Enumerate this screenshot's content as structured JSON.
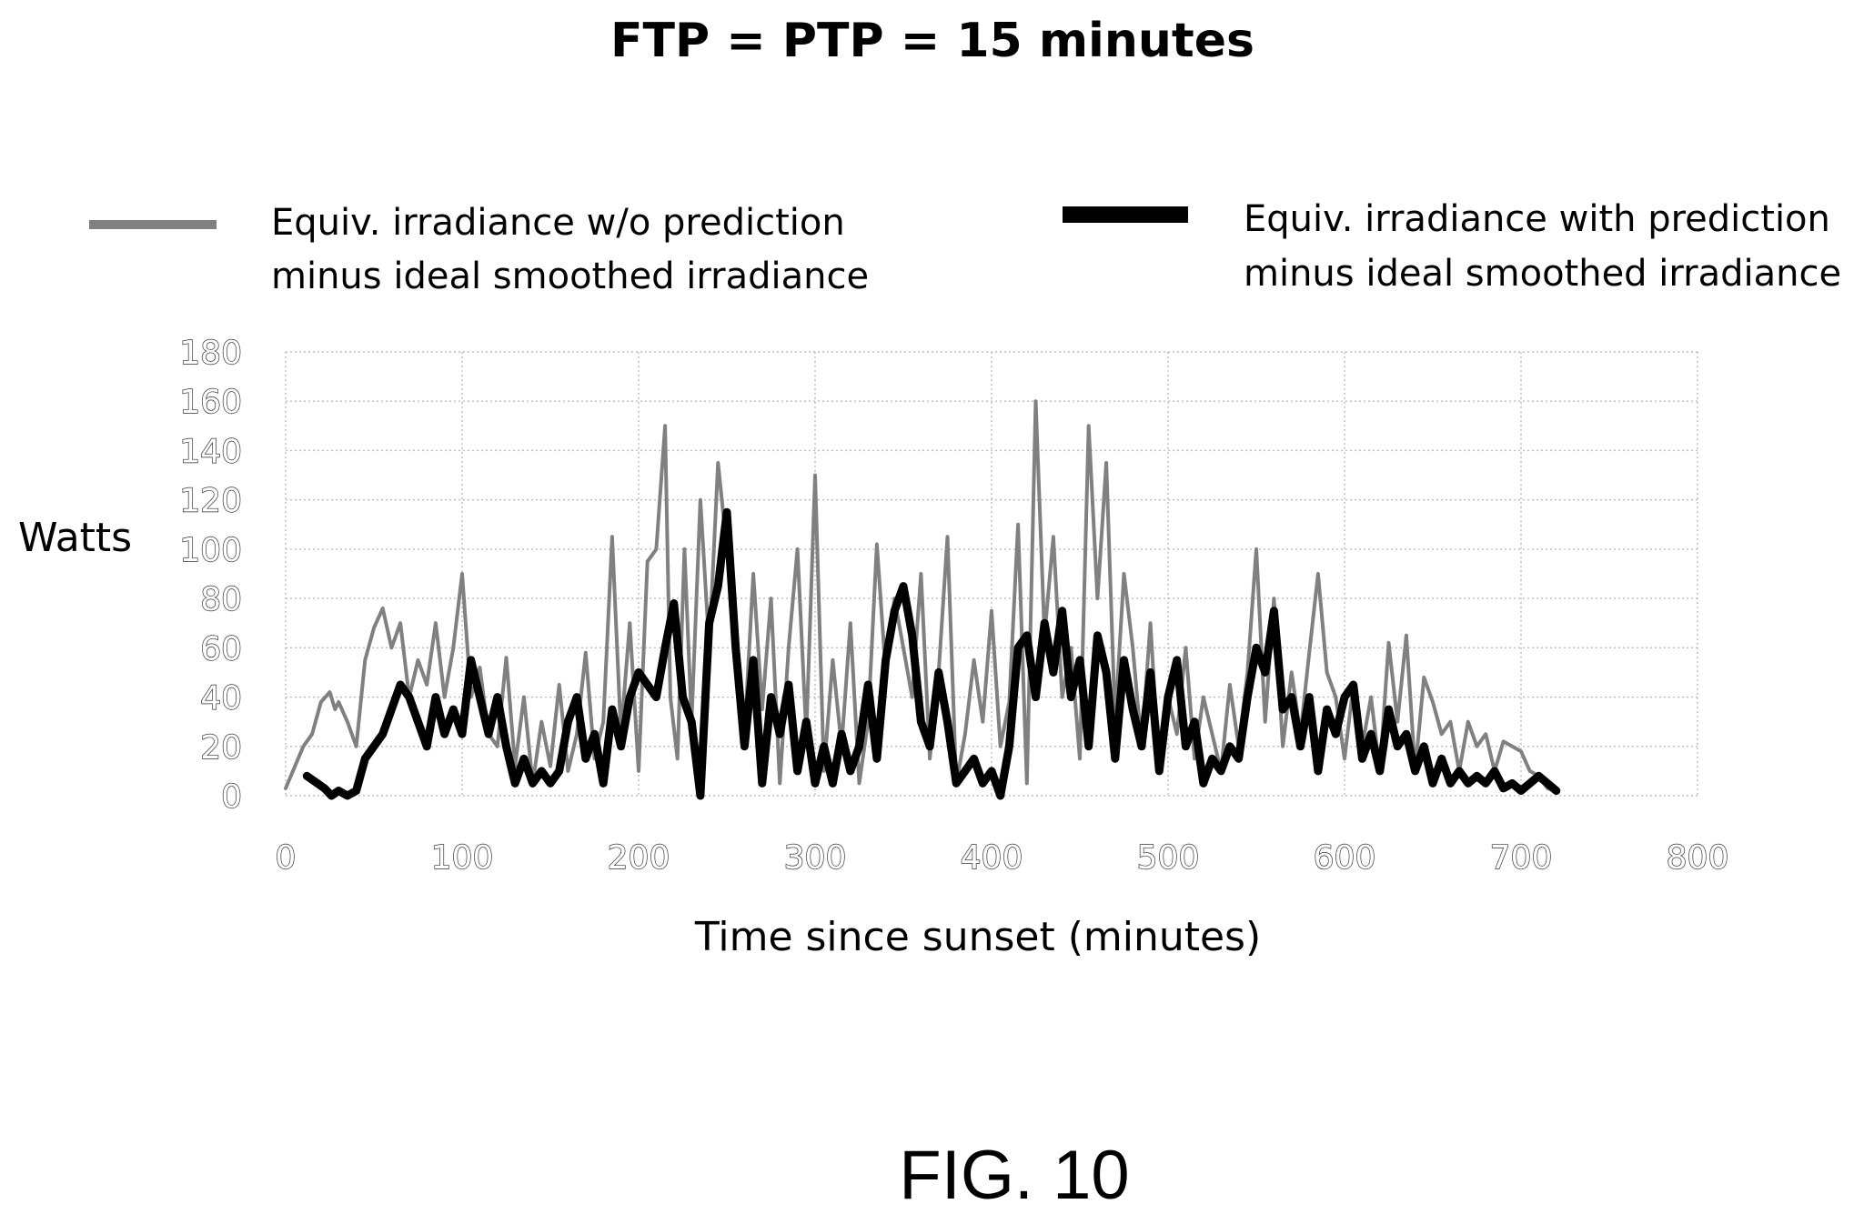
{
  "chart_data": {
    "type": "line",
    "title": "FTP = PTP = 15 minutes",
    "xlabel": "Time since sunset (minutes)",
    "ylabel": "Watts",
    "figure_label": "FIG. 10",
    "xlim": [
      0,
      800
    ],
    "ylim": [
      0,
      180
    ],
    "x_ticks": [
      0,
      100,
      200,
      300,
      400,
      500,
      600,
      700,
      800
    ],
    "y_ticks": [
      0,
      20,
      40,
      60,
      80,
      100,
      120,
      140,
      160,
      180
    ],
    "grid": true,
    "legend_position": "top",
    "series": [
      {
        "name_lines": [
          "Equiv. irradiance w/o prediction",
          "minus ideal smoothed irradiance"
        ],
        "color": "#808080",
        "style": "thin",
        "x": [
          0,
          10,
          15,
          20,
          25,
          28,
          30,
          35,
          40,
          45,
          50,
          55,
          60,
          65,
          70,
          75,
          80,
          85,
          90,
          95,
          100,
          105,
          110,
          115,
          120,
          125,
          130,
          135,
          140,
          145,
          150,
          155,
          160,
          165,
          170,
          175,
          180,
          185,
          190,
          195,
          200,
          205,
          210,
          215,
          218,
          222,
          226,
          230,
          235,
          240,
          245,
          250,
          255,
          260,
          265,
          270,
          275,
          280,
          285,
          290,
          295,
          300,
          305,
          310,
          315,
          320,
          325,
          330,
          335,
          340,
          345,
          350,
          355,
          360,
          365,
          370,
          375,
          380,
          385,
          390,
          395,
          400,
          405,
          410,
          415,
          420,
          425,
          430,
          435,
          440,
          445,
          450,
          455,
          460,
          465,
          470,
          475,
          480,
          485,
          490,
          495,
          500,
          505,
          510,
          515,
          520,
          525,
          530,
          535,
          540,
          545,
          550,
          555,
          560,
          565,
          570,
          575,
          580,
          585,
          590,
          595,
          600,
          605,
          610,
          615,
          620,
          625,
          630,
          635,
          640,
          645,
          650,
          655,
          660,
          665,
          670,
          675,
          680,
          685,
          690,
          695,
          700,
          705,
          710,
          715,
          720
        ],
        "values": [
          3,
          20,
          25,
          38,
          42,
          35,
          38,
          30,
          20,
          55,
          68,
          76,
          60,
          70,
          40,
          55,
          45,
          70,
          40,
          60,
          90,
          40,
          52,
          25,
          20,
          56,
          12,
          40,
          5,
          30,
          12,
          45,
          10,
          25,
          58,
          15,
          30,
          105,
          25,
          70,
          10,
          95,
          100,
          150,
          40,
          15,
          100,
          30,
          120,
          60,
          135,
          100,
          65,
          25,
          90,
          35,
          80,
          5,
          60,
          100,
          25,
          130,
          10,
          55,
          20,
          70,
          5,
          30,
          102,
          50,
          80,
          60,
          40,
          90,
          15,
          50,
          105,
          5,
          25,
          55,
          30,
          75,
          20,
          38,
          110,
          5,
          160,
          65,
          105,
          40,
          60,
          15,
          150,
          80,
          135,
          30,
          90,
          60,
          20,
          70,
          10,
          40,
          25,
          60,
          15,
          40,
          25,
          10,
          45,
          20,
          50,
          100,
          30,
          80,
          20,
          50,
          25,
          58,
          90,
          50,
          40,
          15,
          45,
          20,
          40,
          10,
          62,
          30,
          65,
          10,
          48,
          38,
          25,
          30,
          10,
          30,
          20,
          25,
          10,
          22,
          20,
          18,
          10,
          8,
          3,
          2
        ]
      },
      {
        "name_lines": [
          "Equiv. irradiance with prediction",
          "minus ideal smoothed irradiance"
        ],
        "color": "#000000",
        "style": "thick",
        "x": [
          12,
          18,
          22,
          26,
          30,
          35,
          40,
          45,
          50,
          55,
          60,
          65,
          70,
          75,
          80,
          85,
          90,
          95,
          100,
          105,
          110,
          115,
          120,
          125,
          130,
          135,
          140,
          145,
          150,
          155,
          160,
          165,
          170,
          175,
          180,
          185,
          190,
          195,
          200,
          205,
          210,
          215,
          220,
          225,
          230,
          235,
          240,
          245,
          250,
          255,
          260,
          265,
          270,
          275,
          280,
          285,
          290,
          295,
          300,
          305,
          310,
          315,
          320,
          325,
          330,
          335,
          340,
          345,
          350,
          355,
          360,
          365,
          370,
          375,
          380,
          385,
          390,
          395,
          400,
          405,
          410,
          415,
          420,
          425,
          430,
          435,
          440,
          445,
          450,
          455,
          460,
          465,
          470,
          475,
          480,
          485,
          490,
          495,
          500,
          505,
          510,
          515,
          520,
          525,
          530,
          535,
          540,
          545,
          550,
          555,
          560,
          565,
          570,
          575,
          580,
          585,
          590,
          595,
          600,
          605,
          610,
          615,
          620,
          625,
          630,
          635,
          640,
          645,
          650,
          655,
          660,
          665,
          670,
          675,
          680,
          685,
          690,
          695,
          700,
          705,
          710,
          715,
          720
        ],
        "values": [
          8,
          5,
          3,
          0,
          2,
          0,
          2,
          15,
          20,
          25,
          35,
          45,
          40,
          30,
          20,
          40,
          25,
          35,
          25,
          55,
          40,
          25,
          40,
          20,
          5,
          15,
          5,
          10,
          5,
          10,
          30,
          40,
          15,
          25,
          5,
          35,
          20,
          40,
          50,
          45,
          40,
          60,
          78,
          40,
          30,
          0,
          70,
          85,
          115,
          60,
          20,
          55,
          5,
          40,
          25,
          45,
          10,
          30,
          5,
          20,
          5,
          25,
          10,
          20,
          45,
          15,
          55,
          75,
          85,
          65,
          30,
          20,
          50,
          30,
          5,
          10,
          15,
          5,
          10,
          0,
          20,
          60,
          65,
          40,
          70,
          50,
          75,
          40,
          55,
          20,
          65,
          50,
          15,
          55,
          35,
          20,
          50,
          10,
          40,
          55,
          20,
          30,
          5,
          15,
          10,
          20,
          15,
          40,
          60,
          50,
          75,
          35,
          40,
          20,
          40,
          10,
          35,
          25,
          40,
          45,
          15,
          25,
          10,
          35,
          20,
          25,
          10,
          20,
          5,
          15,
          5,
          10,
          5,
          8,
          5,
          10,
          3,
          5,
          2,
          5,
          8,
          5,
          2
        ]
      }
    ]
  }
}
